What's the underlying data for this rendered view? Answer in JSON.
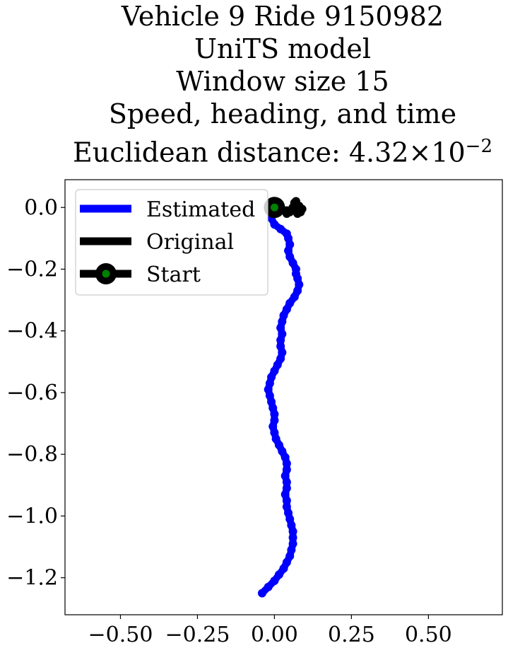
{
  "title_lines": [
    "Vehicle 9 Ride 9150982",
    "UniTS model",
    "Window size 15",
    "Speed, heading, and time"
  ],
  "title_distance": {
    "label": "Euclidean distance: ",
    "mantissa": "4.32",
    "times": "×",
    "base": "10",
    "exponent": "−2"
  },
  "chart_data": {
    "type": "line",
    "xlabel": "",
    "ylabel": "",
    "xlim": [
      -0.68,
      0.74
    ],
    "ylim": [
      -1.32,
      0.09
    ],
    "xticks": [
      -0.5,
      -0.25,
      0.0,
      0.25,
      0.5
    ],
    "xtick_labels": [
      "−0.50",
      "−0.25",
      "0.00",
      "0.25",
      "0.50"
    ],
    "yticks": [
      0.0,
      -0.2,
      -0.4,
      -0.6,
      -0.8,
      -1.0,
      -1.2
    ],
    "ytick_labels": [
      "0.0",
      "−0.2",
      "−0.4",
      "−0.6",
      "−0.8",
      "−1.0",
      "−1.2"
    ],
    "grid": false,
    "legend_position": "top-left",
    "legend": [
      "Estimated",
      "Original",
      "Start"
    ],
    "series": [
      {
        "name": "Estimated",
        "color": "#0000ff",
        "x": [
          0.0,
          -0.01,
          -0.01,
          0.0,
          0.02,
          0.04,
          0.045,
          0.05,
          0.045,
          0.05,
          0.06,
          0.07,
          0.07,
          0.075,
          0.08,
          0.075,
          0.065,
          0.05,
          0.04,
          0.03,
          0.025,
          0.02,
          0.025,
          0.02,
          0.02,
          0.025,
          0.02,
          0.01,
          0.0,
          -0.01,
          -0.015,
          -0.02,
          -0.015,
          -0.01,
          -0.005,
          0.0,
          0.0,
          -0.005,
          0.0,
          0.005,
          0.015,
          0.025,
          0.035,
          0.04,
          0.04,
          0.035,
          0.04,
          0.04,
          0.035,
          0.04,
          0.04,
          0.045,
          0.05,
          0.055,
          0.06,
          0.06,
          0.06,
          0.055,
          0.05,
          0.04,
          0.03,
          0.015,
          0.0,
          -0.02,
          -0.04
        ],
        "y": [
          0.0,
          -0.015,
          -0.035,
          -0.055,
          -0.07,
          -0.085,
          -0.1,
          -0.12,
          -0.14,
          -0.16,
          -0.18,
          -0.2,
          -0.215,
          -0.23,
          -0.25,
          -0.27,
          -0.29,
          -0.31,
          -0.33,
          -0.35,
          -0.37,
          -0.39,
          -0.41,
          -0.43,
          -0.45,
          -0.47,
          -0.49,
          -0.51,
          -0.53,
          -0.55,
          -0.57,
          -0.59,
          -0.61,
          -0.63,
          -0.65,
          -0.67,
          -0.69,
          -0.71,
          -0.73,
          -0.75,
          -0.77,
          -0.79,
          -0.81,
          -0.83,
          -0.85,
          -0.87,
          -0.89,
          -0.91,
          -0.93,
          -0.95,
          -0.97,
          -0.99,
          -1.01,
          -1.03,
          -1.05,
          -1.07,
          -1.09,
          -1.11,
          -1.13,
          -1.15,
          -1.17,
          -1.19,
          -1.21,
          -1.23,
          -1.25
        ]
      },
      {
        "name": "Original",
        "color": "#000000",
        "x": [
          0.0,
          0.02,
          0.04,
          0.06,
          0.07,
          0.08,
          0.09,
          0.085,
          0.075,
          0.07,
          0.06,
          0.05,
          0.04,
          0.05,
          0.06,
          0.065,
          0.07
        ],
        "y": [
          0.0,
          -0.005,
          -0.01,
          -0.005,
          0.01,
          0.005,
          -0.005,
          -0.015,
          -0.02,
          -0.01,
          0.0,
          -0.01,
          -0.02,
          -0.015,
          0.0,
          0.015,
          0.02
        ]
      }
    ],
    "start_point": {
      "name": "Start",
      "x": 0.0,
      "y": 0.0,
      "outer_color": "#000000",
      "inner_color": "#008000"
    }
  }
}
